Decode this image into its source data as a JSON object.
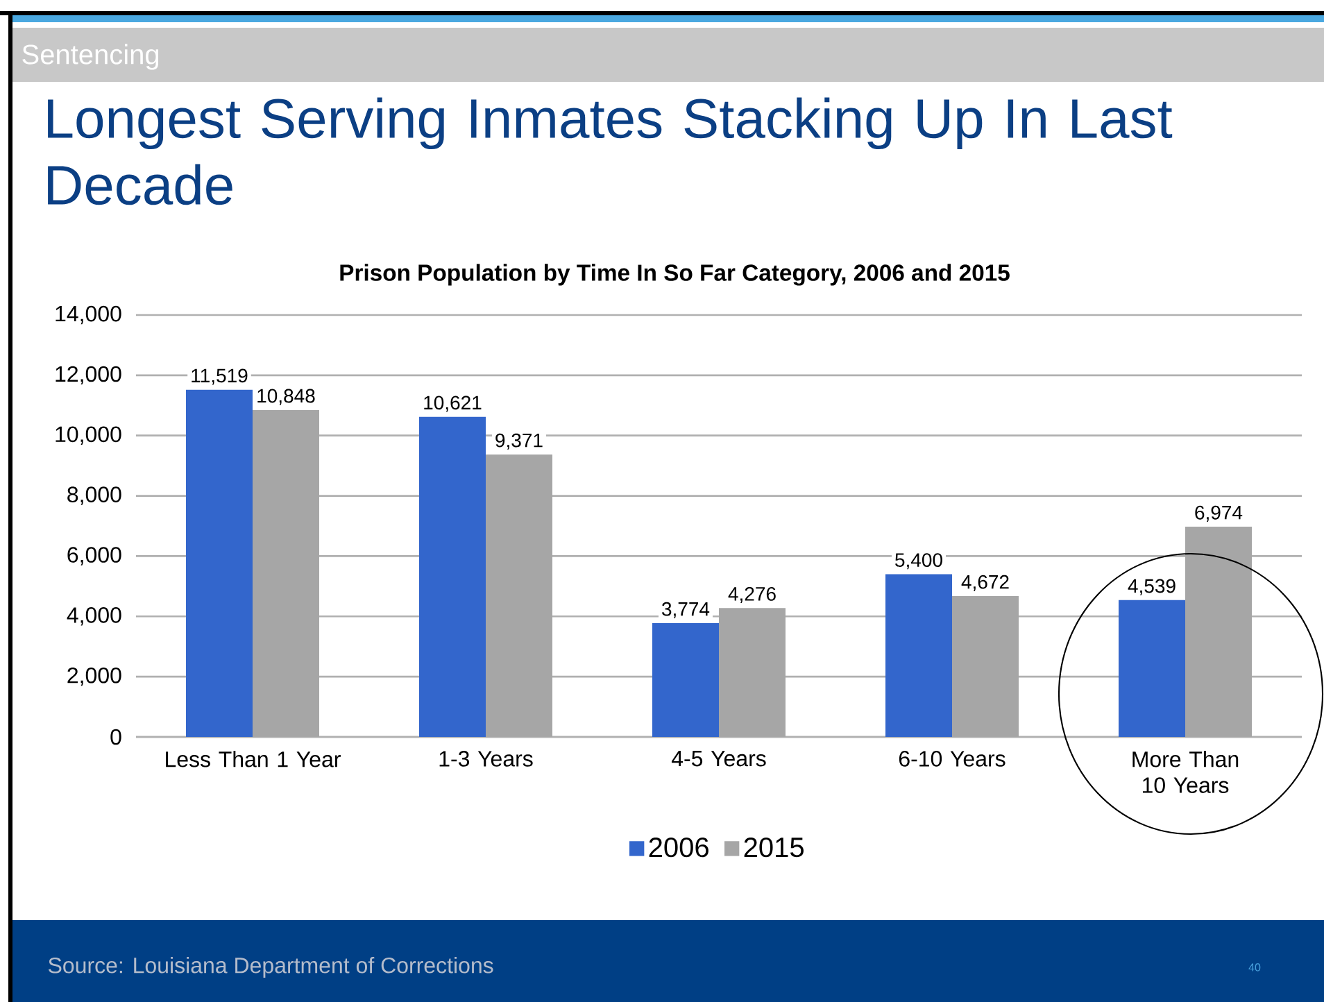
{
  "chart_data": {
    "type": "bar",
    "title": "Longest Serving Inmates Stacking Up In Last Decade",
    "subtitle": "Prison Population by Time In So Far Category, 2006 and 2015",
    "annotations": [
      "Sentencing",
      "Source: Louisiana Department of Corrections",
      "40"
    ],
    "categories": [
      "Less Than 1 Year",
      "1-3 Years",
      "4-5 Years",
      "6-10 Years",
      "More Than 10 Years"
    ],
    "series": [
      {
        "name": "2006",
        "color": "#3366cc",
        "values": [
          11519,
          10621,
          3774,
          5400,
          4539
        ],
        "value_labels": [
          "11,519",
          "10,621",
          "3,774",
          "5,400",
          "4,539"
        ]
      },
      {
        "name": "2015",
        "color": "#a6a6a6",
        "values": [
          10848,
          9371,
          4276,
          4672,
          6974
        ],
        "value_labels": [
          "10,848",
          "9,371",
          "4,276",
          "4,672",
          "6,974"
        ]
      }
    ],
    "ylim": [
      0,
      14000
    ],
    "yticks": [
      {
        "value": 0,
        "label": "0"
      },
      {
        "value": 2000,
        "label": "2,000"
      },
      {
        "value": 4000,
        "label": "4,000"
      },
      {
        "value": 6000,
        "label": "6,000"
      },
      {
        "value": 8000,
        "label": "8,000"
      },
      {
        "value": 10000,
        "label": "10,000"
      },
      {
        "value": 12000,
        "label": "12,000"
      },
      {
        "value": 14000,
        "label": "14,000"
      }
    ],
    "grid": "y",
    "legend": "bottom"
  }
}
